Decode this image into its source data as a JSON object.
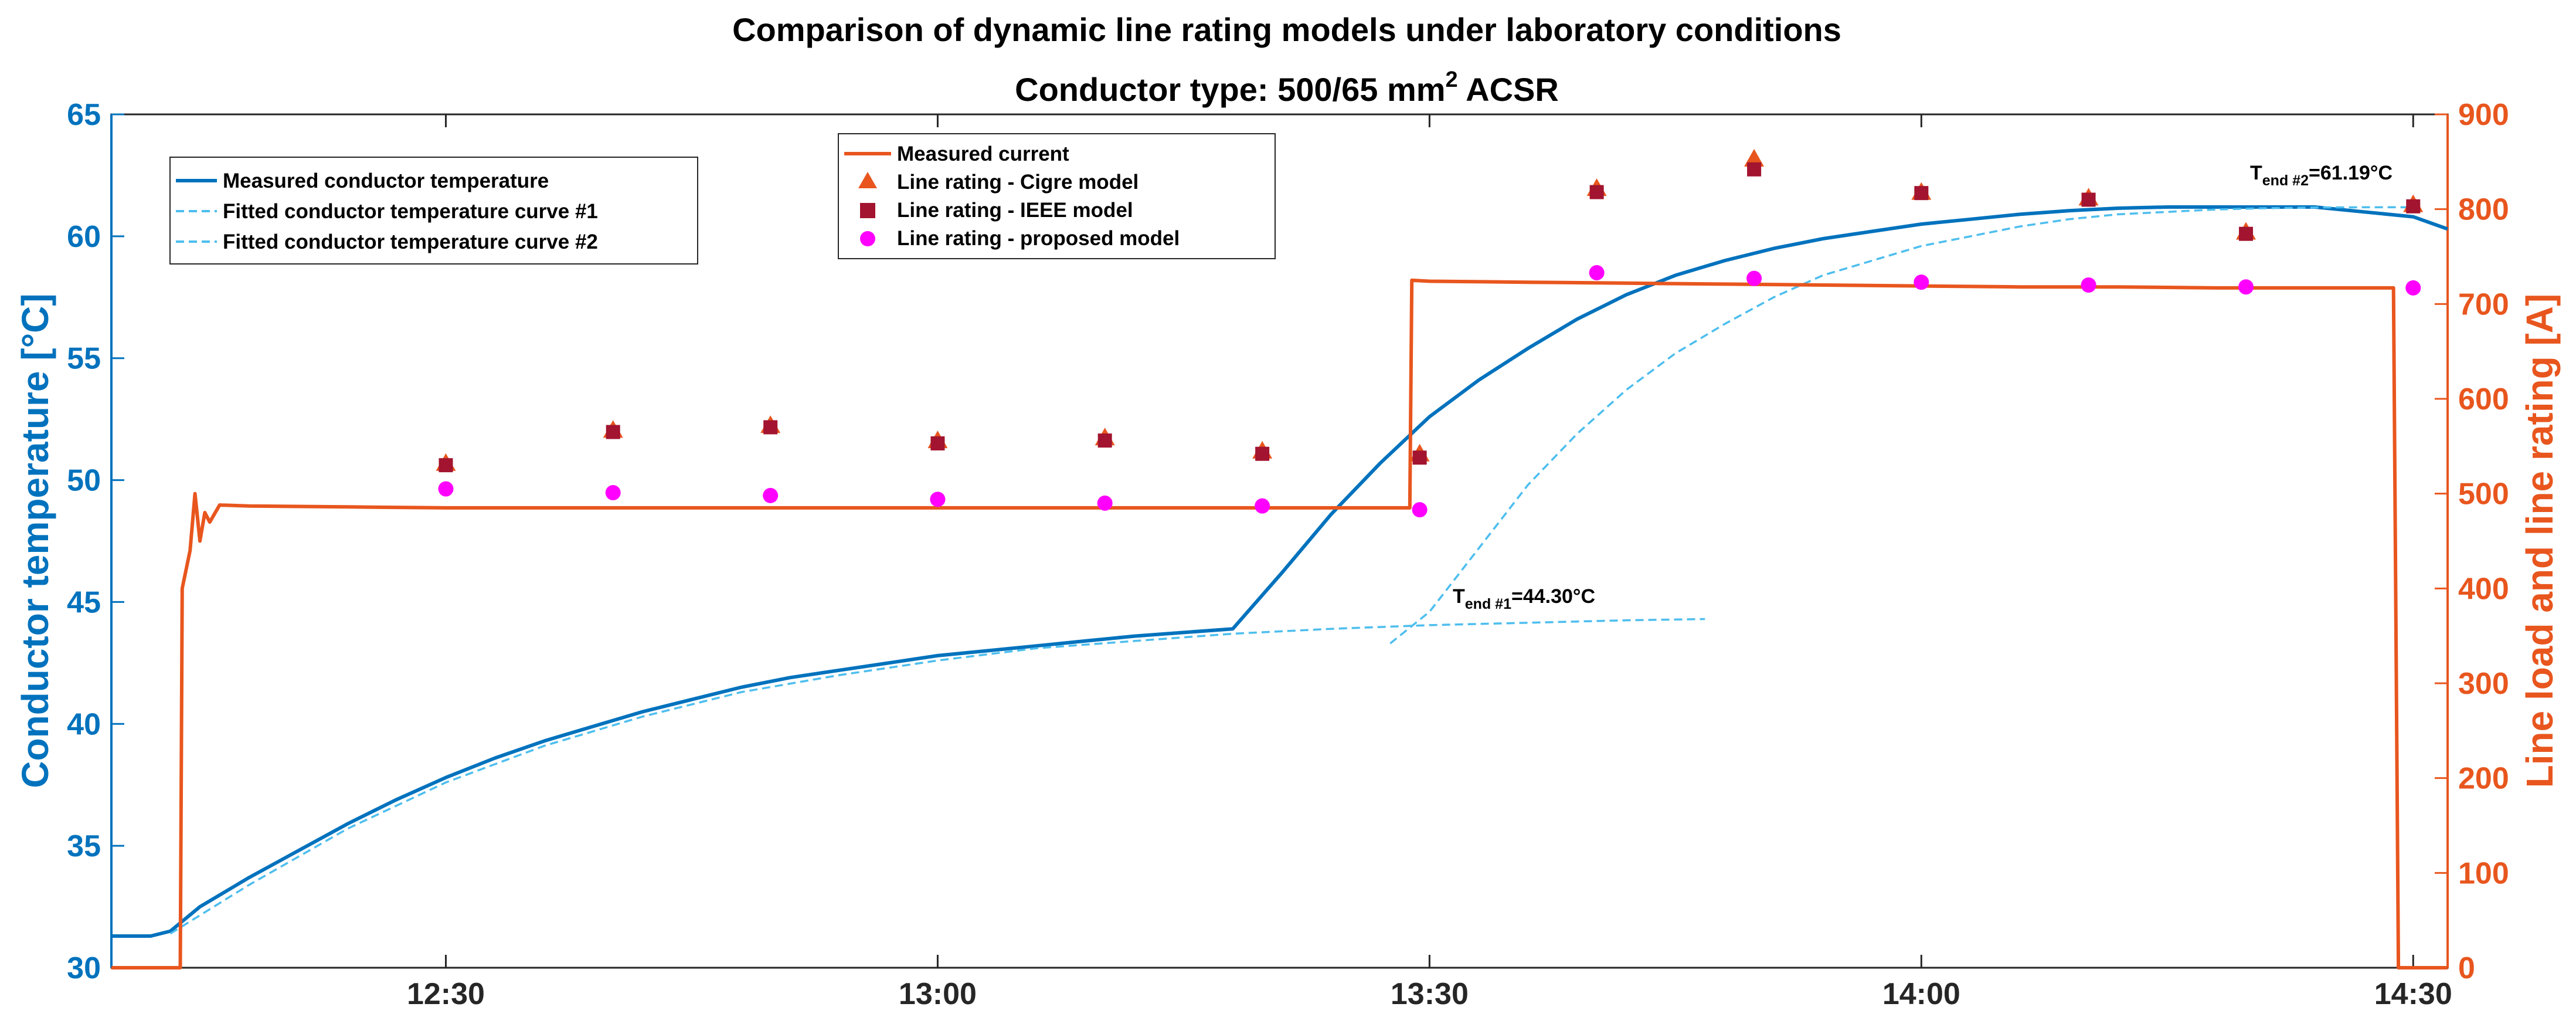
{
  "chart_data": {
    "type": "line",
    "title": "Comparison of dynamic line rating models under laboratory conditions",
    "subtitle_prefix": "Conductor type: 500/65 mm",
    "subtitle_sup": "2",
    "subtitle_suffix": " ACSR",
    "xlabel": "",
    "ylabel_left": "Conductor temperature [°C]",
    "ylabel_right": "Line load and line rating [A]",
    "xlim": [
      12.16,
      14.535
    ],
    "ylim_left": [
      30,
      65
    ],
    "ylim_right": [
      0,
      900
    ],
    "x_ticks": [
      {
        "value": 12.5,
        "label": "12:30"
      },
      {
        "value": 13.0,
        "label": "13:00"
      },
      {
        "value": 13.5,
        "label": "13:30"
      },
      {
        "value": 14.0,
        "label": "14:00"
      },
      {
        "value": 14.5,
        "label": "14:30"
      }
    ],
    "y_ticks_left": [
      "30",
      "35",
      "40",
      "45",
      "50",
      "55",
      "60",
      "65"
    ],
    "y_ticks_right": [
      "0",
      "100",
      "200",
      "300",
      "400",
      "500",
      "600",
      "700",
      "800",
      "900"
    ],
    "colors": {
      "temperature": "#0072BD",
      "fit": "#4DBEEE",
      "current": "#E8561E",
      "cigre": "#E8561E",
      "ieee": "#A2142F",
      "proposed": "#FF00FF",
      "axis": "#262626"
    },
    "legend_left": [
      "Measured conductor temperature",
      "Fitted conductor temperature curve #1",
      "Fitted conductor temperature curve #2"
    ],
    "legend_right": [
      "Measured current",
      "Line rating - Cigre model",
      "Line rating - IEEE model",
      "Line rating - proposed model"
    ],
    "annotation_1": {
      "prefix": "T",
      "sub": "end #1",
      "suffix": "=44.30°C"
    },
    "annotation_2": {
      "prefix": "T",
      "sub": "end #2",
      "suffix": "=61.19°C"
    },
    "series": [
      {
        "name": "Measured conductor temperature",
        "axis": "left",
        "x": [
          12.16,
          12.2,
          12.22,
          12.25,
          12.3,
          12.35,
          12.4,
          12.45,
          12.5,
          12.55,
          12.6,
          12.65,
          12.7,
          12.75,
          12.8,
          12.85,
          12.9,
          12.95,
          13.0,
          13.05,
          13.1,
          13.15,
          13.2,
          13.25,
          13.3,
          13.35,
          13.4,
          13.45,
          13.5,
          13.55,
          13.6,
          13.65,
          13.7,
          13.75,
          13.8,
          13.85,
          13.9,
          13.95,
          14.0,
          14.05,
          14.1,
          14.15,
          14.2,
          14.25,
          14.3,
          14.35,
          14.4,
          14.45,
          14.5,
          14.535
        ],
        "y": [
          31.3,
          31.3,
          31.5,
          32.5,
          33.7,
          34.8,
          35.9,
          36.9,
          37.8,
          38.6,
          39.3,
          39.9,
          40.5,
          41.0,
          41.5,
          41.9,
          42.2,
          42.5,
          42.8,
          43.0,
          43.2,
          43.4,
          43.6,
          43.75,
          43.9,
          46.2,
          48.6,
          50.7,
          52.6,
          54.1,
          55.4,
          56.6,
          57.6,
          58.4,
          59.0,
          59.5,
          59.9,
          60.2,
          60.5,
          60.7,
          60.9,
          61.05,
          61.15,
          61.2,
          61.2,
          61.2,
          61.2,
          61.0,
          60.8,
          60.3
        ]
      },
      {
        "name": "Fitted conductor temperature curve #1",
        "axis": "left",
        "x": [
          12.22,
          12.3,
          12.4,
          12.5,
          12.6,
          12.7,
          12.8,
          12.9,
          13.0,
          13.1,
          13.2,
          13.3,
          13.4,
          13.5,
          13.6,
          13.7,
          13.78
        ],
        "y": [
          31.4,
          33.4,
          35.7,
          37.6,
          39.1,
          40.3,
          41.3,
          42.0,
          42.6,
          43.1,
          43.4,
          43.7,
          43.9,
          44.05,
          44.15,
          44.25,
          44.3
        ]
      },
      {
        "name": "Fitted conductor temperature curve #2",
        "axis": "left",
        "x": [
          13.46,
          13.5,
          13.55,
          13.6,
          13.65,
          13.7,
          13.75,
          13.8,
          13.85,
          13.9,
          13.95,
          14.0,
          14.05,
          14.1,
          14.15,
          14.2,
          14.25,
          14.3,
          14.35,
          14.4,
          14.45,
          14.5
        ],
        "y": [
          43.3,
          44.6,
          47.2,
          49.8,
          51.9,
          53.7,
          55.2,
          56.4,
          57.5,
          58.4,
          59.0,
          59.6,
          60.0,
          60.4,
          60.7,
          60.9,
          61.0,
          61.1,
          61.15,
          61.18,
          61.19,
          61.19
        ]
      },
      {
        "name": "Measured current",
        "axis": "right",
        "x": [
          12.16,
          12.23,
          12.232,
          12.24,
          12.245,
          12.25,
          12.255,
          12.26,
          12.27,
          12.3,
          12.4,
          12.5,
          12.6,
          12.7,
          12.8,
          12.9,
          13.0,
          13.1,
          13.2,
          13.3,
          13.4,
          13.48,
          13.482,
          13.5,
          13.6,
          13.7,
          13.8,
          13.9,
          14.0,
          14.1,
          14.2,
          14.3,
          14.4,
          14.48,
          14.485,
          14.535
        ],
        "y": [
          0,
          0,
          400,
          440,
          500,
          450,
          480,
          470,
          488,
          487,
          486,
          485,
          485,
          485,
          485,
          485,
          485,
          485,
          485,
          485,
          485,
          485,
          725,
          724,
          723,
          722,
          721,
          720,
          719,
          718,
          718,
          717,
          717,
          717,
          0,
          0
        ]
      },
      {
        "name": "Line rating - Cigre model",
        "axis": "right",
        "x": [
          12.5,
          12.67,
          12.83,
          13.0,
          13.17,
          13.33,
          13.49,
          13.67,
          13.83,
          14.0,
          14.17,
          14.33,
          14.5
        ],
        "y": [
          532,
          567,
          572,
          556,
          559,
          545,
          542,
          822,
          853,
          818,
          812,
          776,
          805
        ]
      },
      {
        "name": "Line rating - IEEE model",
        "axis": "right",
        "x": [
          12.5,
          12.67,
          12.83,
          13.0,
          13.17,
          13.33,
          13.49,
          13.67,
          13.83,
          14.0,
          14.17,
          14.33,
          14.5
        ],
        "y": [
          530,
          565,
          570,
          553,
          556,
          542,
          538,
          818,
          842,
          817,
          810,
          774,
          803
        ]
      },
      {
        "name": "Line rating - proposed model",
        "axis": "right",
        "x": [
          12.5,
          12.67,
          12.83,
          13.0,
          13.17,
          13.33,
          13.49,
          13.67,
          13.83,
          14.0,
          14.17,
          14.33,
          14.5
        ],
        "y": [
          505,
          501,
          498,
          494,
          490,
          487,
          483,
          733,
          727,
          723,
          720,
          718,
          717
        ]
      }
    ]
  }
}
